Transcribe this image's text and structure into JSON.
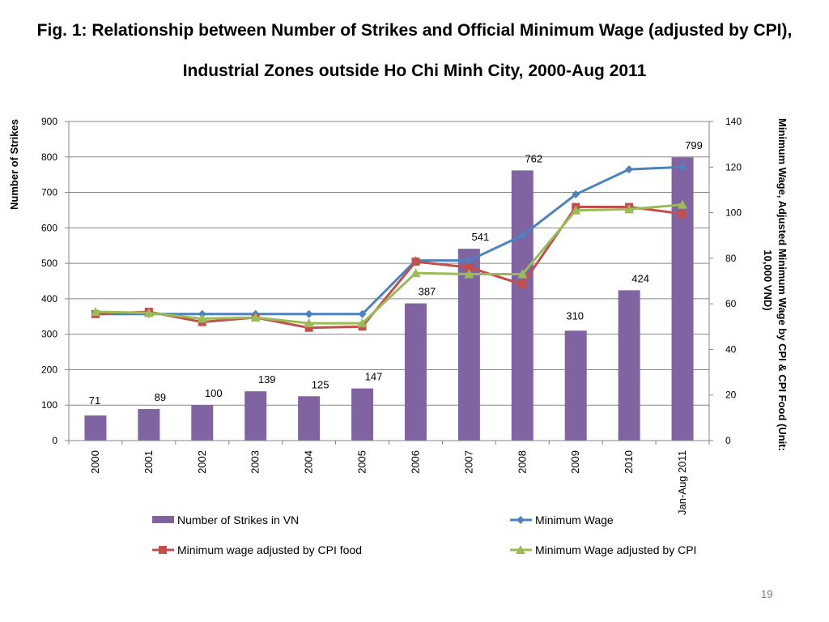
{
  "slide": {
    "title_line1": "Fig. 1: Relationship between Number of Strikes and Official Minimum Wage (adjusted by CPI),",
    "title_line2": "Industrial Zones outside Ho Chi Minh City, 2000-Aug 2011",
    "page_number": "19"
  },
  "chart_data": {
    "type": "bar",
    "categories": [
      "2000",
      "2001",
      "2002",
      "2003",
      "2004",
      "2005",
      "2006",
      "2007",
      "2008",
      "2009",
      "2010",
      "Jan-Aug 2011"
    ],
    "ylabel": "Number of Strikes",
    "y2label_line1": "Minimum Wage, Adjusted Minimum Wage by CPI & CPI Food (Unit:",
    "y2label_line2": "10,000 VND)",
    "ylim": [
      0,
      900
    ],
    "y2lim": [
      0,
      140
    ],
    "yticks": [
      "0",
      "100",
      "200",
      "300",
      "400",
      "500",
      "600",
      "700",
      "800",
      "900"
    ],
    "y2ticks": [
      "0",
      "20",
      "40",
      "60",
      "80",
      "100",
      "120",
      "140"
    ],
    "grid": true,
    "legend_position": "bottom",
    "series": [
      {
        "name": "Number of Strikes in VN",
        "kind": "bar",
        "axis": "left",
        "color": "#8064a2",
        "values": [
          71,
          89,
          100,
          139,
          125,
          147,
          387,
          541,
          762,
          310,
          424,
          799
        ],
        "data_labels": [
          "71",
          "89",
          "100",
          "139",
          "125",
          "147",
          "387",
          "541",
          "762",
          "310",
          "424",
          "799"
        ]
      },
      {
        "name": "Minimum Wage",
        "kind": "line",
        "axis": "right",
        "color": "#4f81bd",
        "marker": "diamond",
        "values": [
          55.5,
          55.5,
          55.5,
          55.5,
          55.5,
          55.5,
          79,
          79,
          90,
          108,
          119,
          120
        ]
      },
      {
        "name": "Minimum wage adjusted by CPI food",
        "kind": "line",
        "axis": "right",
        "color": "#c0504d",
        "marker": "square",
        "values": [
          55.5,
          56.5,
          52,
          54,
          49.5,
          50,
          78.5,
          76,
          68.5,
          102.5,
          102.5,
          99.5
        ]
      },
      {
        "name": "Minimum Wage adjusted by CPI",
        "kind": "line",
        "axis": "right",
        "color": "#9bbb59",
        "marker": "triangle",
        "values": [
          56.5,
          56,
          53.5,
          54,
          51.5,
          51.5,
          73.5,
          73,
          73,
          101,
          101.5,
          103.5
        ]
      }
    ]
  }
}
